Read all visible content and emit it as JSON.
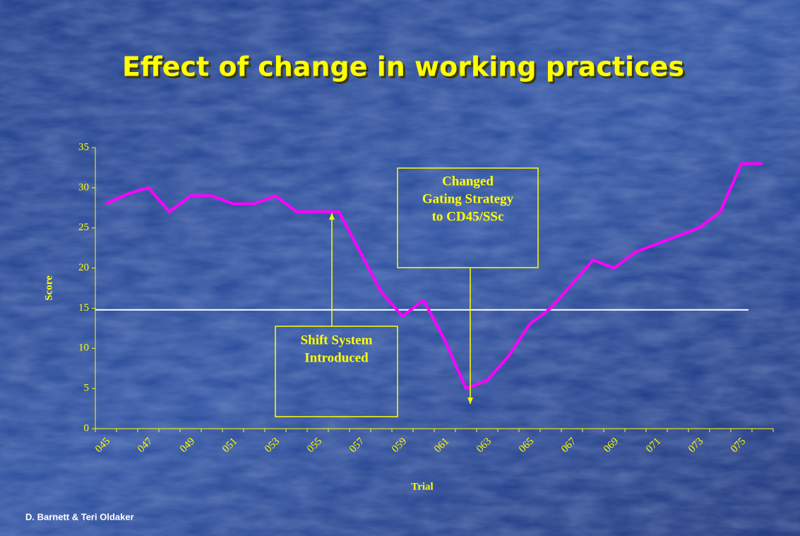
{
  "chart_data": {
    "type": "line",
    "title": "Effect of change in working practices",
    "xlabel": "Trial",
    "ylabel": "Score",
    "footer": "D. Barnett & Teri Oldaker",
    "categories": [
      "045",
      null,
      "047",
      null,
      "049",
      null,
      "051",
      null,
      "053",
      null,
      "055",
      null,
      "057",
      null,
      "059",
      null,
      "061",
      null,
      "063",
      null,
      "065",
      null,
      "067",
      null,
      "069",
      null,
      "071",
      null,
      "073",
      null,
      "075",
      null
    ],
    "series": [
      {
        "name": "Score",
        "color": "#ff00ff",
        "values": [
          28,
          29.2,
          30,
          27,
          29,
          29,
          28,
          28,
          29,
          27,
          27,
          27,
          22,
          17,
          14,
          16,
          11,
          5,
          6,
          9,
          13,
          15,
          18,
          21,
          20,
          22,
          23,
          24,
          25,
          27,
          33,
          33
        ]
      }
    ],
    "reference_line": {
      "value": 14.8,
      "color": "#ffffff"
    },
    "ylim": [
      0,
      35
    ],
    "yticks": [
      0,
      5,
      10,
      15,
      20,
      25,
      30,
      35
    ],
    "annotations": [
      {
        "lines": [
          "Changed",
          "Gating Strategy",
          "to CD45/SSc"
        ]
      },
      {
        "lines": [
          "Shift System",
          "Introduced"
        ]
      }
    ]
  }
}
